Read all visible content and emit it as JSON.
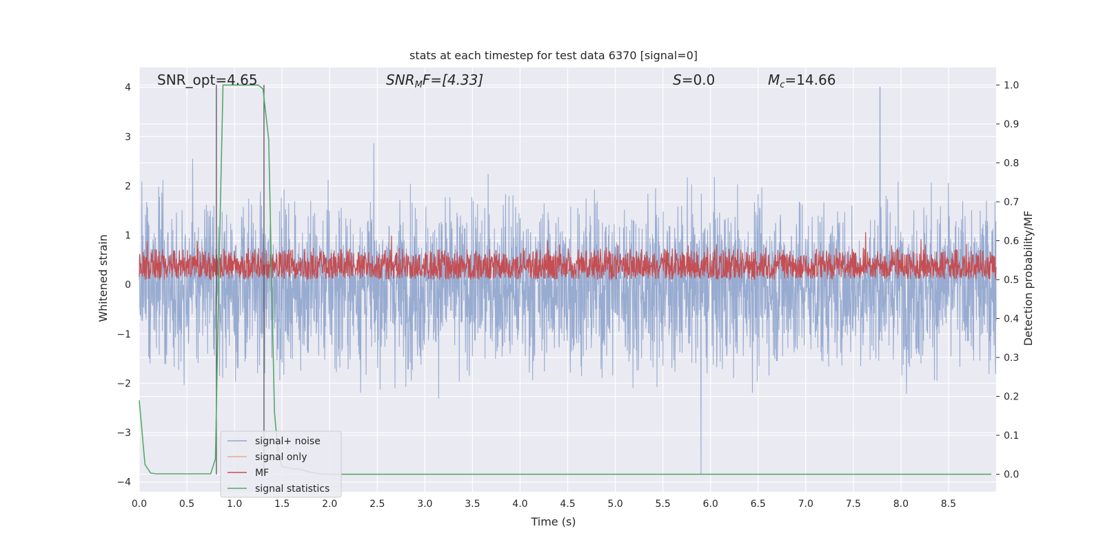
{
  "chart_data": {
    "type": "line",
    "title": "stats at each timestep for test data 6370 [signal=0]",
    "xlabel": "Time (s)",
    "ylabel_left": "Whitened strain",
    "ylabel_right": "Detection probability/MF",
    "xlim": [
      0.0,
      9.0
    ],
    "ylim_left": [
      -4.2,
      4.4
    ],
    "ylim_right": [
      -0.045,
      1.045
    ],
    "x_ticks": [
      "0.0",
      "0.5",
      "1.0",
      "1.5",
      "2.0",
      "2.5",
      "3.0",
      "3.5",
      "4.0",
      "4.5",
      "5.0",
      "5.5",
      "6.0",
      "6.5",
      "7.0",
      "7.5",
      "8.0",
      "8.5"
    ],
    "y_ticks_left": [
      "4",
      "3",
      "2",
      "1",
      "0",
      "−1",
      "−2",
      "−3",
      "−4"
    ],
    "y_ticks_right": [
      "1.0",
      "0.9",
      "0.8",
      "0.7",
      "0.6",
      "0.5",
      "0.4",
      "0.3",
      "0.2",
      "0.1",
      "0.0"
    ],
    "grid": true,
    "legend_position": "bottom-left",
    "annotations": {
      "snr_opt": "SNR_opt=4.65",
      "snr_mf": "SNR",
      "snr_mf_sub": "M",
      "snr_mf_tail": "F=[4.33]",
      "s_label": "S",
      "s_value": "=0.0",
      "mc_label": "M",
      "mc_sub": "c",
      "mc_value": "=14.66"
    },
    "vertical_markers_s": [
      0.81,
      1.31
    ],
    "series": [
      {
        "name": "signal+ noise",
        "color": "#8fa4cc",
        "axis": "left",
        "description": "noisy whitened strain, approx ±1.5 with peaks to ±3",
        "peak_high": {
          "x": 7.78,
          "y": 4.0
        },
        "peak_low": {
          "x": 5.9,
          "y": -3.85
        }
      },
      {
        "name": "signal only",
        "color": "#e8a98a",
        "axis": "left",
        "values": []
      },
      {
        "name": "MF",
        "color": "#c44e52",
        "axis": "right",
        "description": "matched filter output fluctuating between 0.5 and 0.6"
      },
      {
        "name": "signal statistics",
        "color": "#55a868",
        "axis": "right",
        "x": [
          0.0,
          0.06,
          0.12,
          0.18,
          0.3,
          0.5,
          0.7,
          0.75,
          0.8,
          0.84,
          0.88,
          0.9,
          1.0,
          1.1,
          1.2,
          1.25,
          1.3,
          1.36,
          1.42,
          1.46,
          1.5,
          1.6,
          1.7,
          1.8,
          1.9,
          2.0,
          2.5,
          3.0,
          4.0,
          5.0,
          6.0,
          7.0,
          8.0,
          8.95
        ],
        "y": [
          0.19,
          0.025,
          0.003,
          0.001,
          0.001,
          0.001,
          0.001,
          0.001,
          0.04,
          0.55,
          1.0,
          1.0,
          1.0,
          1.0,
          1.0,
          1.0,
          0.99,
          0.86,
          0.16,
          0.05,
          0.02,
          0.015,
          0.012,
          0.005,
          0.001,
          0.0,
          0.0,
          0.0,
          0.0,
          0.0,
          0.0,
          0.0,
          0.0,
          0.0
        ]
      }
    ]
  }
}
